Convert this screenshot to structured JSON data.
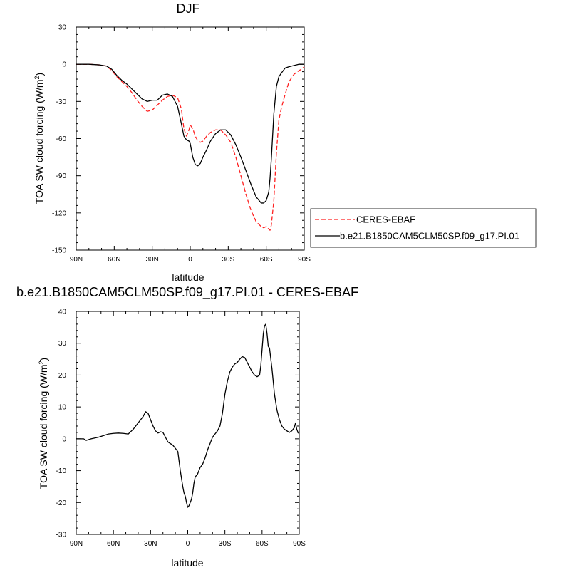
{
  "chart_data": [
    {
      "type": "line",
      "title": "DJF",
      "xlabel": "latitude",
      "ylabel": "TOA SW cloud forcing (W/m",
      "ylabel_sup": "2",
      "ylabel_end": ")",
      "xlim": [
        90,
        -90
      ],
      "ylim": [
        -150,
        30
      ],
      "x_ticks": [
        {
          "value": 90,
          "label": "90N"
        },
        {
          "value": 60,
          "label": "60N"
        },
        {
          "value": 30,
          "label": "30N"
        },
        {
          "value": 0,
          "label": "0"
        },
        {
          "value": -30,
          "label": "30S"
        },
        {
          "value": -60,
          "label": "60S"
        },
        {
          "value": -90,
          "label": "90S"
        }
      ],
      "y_ticks": [
        30,
        0,
        -30,
        -60,
        -90,
        -120,
        -150
      ],
      "grid": false,
      "legend_position": "right",
      "series": [
        {
          "name": "CERES-EBAF",
          "color": "#ff2020",
          "dash": "dashed",
          "x": [
            90,
            80,
            72,
            66,
            62,
            58,
            54,
            50,
            46,
            42,
            38,
            34,
            30,
            26,
            22,
            18,
            14,
            10,
            7,
            5,
            3,
            1,
            0,
            -2,
            -4,
            -6,
            -8,
            -10,
            -13,
            -16,
            -20,
            -24,
            -28,
            -32,
            -36,
            -40,
            -44,
            -48,
            -52,
            -56,
            -58,
            -60,
            -62,
            -63,
            -64,
            -66,
            -68,
            -70,
            -72,
            -75,
            -78,
            -82,
            -86,
            -88,
            -90
          ],
          "y": [
            0,
            0,
            -0.5,
            -1.5,
            -5,
            -10,
            -14,
            -18,
            -23,
            -29,
            -34,
            -38,
            -37,
            -33,
            -29,
            -26,
            -25,
            -27,
            -36,
            -52,
            -58,
            -53,
            -49,
            -52,
            -58,
            -62,
            -63,
            -62,
            -58,
            -55,
            -53,
            -53,
            -57,
            -63,
            -75,
            -90,
            -105,
            -118,
            -127,
            -131,
            -132,
            -131,
            -133,
            -134,
            -130,
            -110,
            -72,
            -45,
            -35,
            -24,
            -14,
            -8,
            -5,
            -4,
            -2
          ]
        },
        {
          "name": "b.e21.B1850CAM5CLM50SP.f09_g17.PI.01",
          "color": "#000000",
          "dash": "solid",
          "x": [
            90,
            80,
            72,
            66,
            62,
            58,
            54,
            50,
            46,
            42,
            38,
            34,
            30,
            26,
            22,
            18,
            14,
            10,
            7,
            5,
            3,
            1,
            0,
            -2,
            -4,
            -6,
            -8,
            -10,
            -13,
            -16,
            -20,
            -24,
            -28,
            -32,
            -36,
            -40,
            -44,
            -48,
            -52,
            -56,
            -58,
            -60,
            -62,
            -63,
            -64,
            -66,
            -68,
            -70,
            -72,
            -75,
            -78,
            -82,
            -86,
            -88,
            -90
          ],
          "y": [
            0,
            0,
            -0.5,
            -1.5,
            -4,
            -9,
            -13,
            -16,
            -20,
            -24,
            -28,
            -30,
            -29,
            -29,
            -25,
            -24,
            -26,
            -34,
            -48,
            -58,
            -61,
            -62,
            -64,
            -75,
            -81,
            -82,
            -80,
            -75,
            -69,
            -62,
            -56,
            -53,
            -53,
            -57,
            -65,
            -75,
            -86,
            -97,
            -107,
            -112,
            -112,
            -110,
            -103,
            -92,
            -77,
            -40,
            -18,
            -10,
            -7,
            -3,
            -2,
            -1,
            0,
            0,
            0
          ]
        }
      ]
    },
    {
      "type": "line",
      "title": "b.e21.B1850CAM5CLM50SP.f09_g17.PI.01 - CERES-EBAF",
      "xlabel": "latitude",
      "ylabel": "TOA SW cloud forcing (W/m",
      "ylabel_sup": "2",
      "ylabel_end": ")",
      "xlim": [
        90,
        -90
      ],
      "ylim": [
        -30,
        40
      ],
      "x_ticks": [
        {
          "value": 90,
          "label": "90N"
        },
        {
          "value": 60,
          "label": "60N"
        },
        {
          "value": 30,
          "label": "30N"
        },
        {
          "value": 0,
          "label": "0"
        },
        {
          "value": -30,
          "label": "30S"
        },
        {
          "value": -60,
          "label": "60S"
        },
        {
          "value": -90,
          "label": "90S"
        }
      ],
      "y_ticks": [
        40,
        30,
        20,
        10,
        0,
        -10,
        -20,
        -30
      ],
      "grid": false,
      "series": [
        {
          "name": "",
          "color": "#000000",
          "dash": "solid",
          "x": [
            90,
            84,
            82,
            78,
            72,
            68,
            64,
            60,
            56,
            52,
            48,
            44,
            40,
            38,
            36,
            34,
            32,
            30,
            28,
            26,
            24,
            22,
            20,
            18,
            16,
            14,
            12,
            10,
            8,
            6,
            4,
            3,
            2,
            1,
            0,
            -1,
            -2,
            -3,
            -4,
            -5,
            -6,
            -8,
            -10,
            -12,
            -14,
            -16,
            -18,
            -20,
            -22,
            -24,
            -26,
            -28,
            -30,
            -32,
            -34,
            -36,
            -38,
            -40,
            -42,
            -44,
            -46,
            -48,
            -50,
            -52,
            -54,
            -56,
            -58,
            -59,
            -60,
            -61,
            -62,
            -63,
            -64,
            -65,
            -66,
            -68,
            -70,
            -72,
            -74,
            -76,
            -78,
            -80,
            -82,
            -84,
            -86,
            -87,
            -88,
            -89,
            -90
          ],
          "y": [
            0,
            0,
            -0.5,
            0,
            0.5,
            1,
            1.5,
            1.7,
            1.8,
            1.7,
            1.5,
            3,
            5,
            6,
            7,
            8.5,
            8,
            6,
            4,
            2.5,
            1.8,
            2.2,
            2,
            0.5,
            -1,
            -1.5,
            -2,
            -3,
            -4,
            -10,
            -15,
            -17,
            -18,
            -20,
            -21.5,
            -21,
            -20,
            -19,
            -17,
            -14,
            -12,
            -11,
            -9,
            -8,
            -6,
            -3.5,
            -1.5,
            0.5,
            1.5,
            2.5,
            4,
            8,
            14,
            18,
            21,
            22.5,
            23.5,
            24,
            25,
            25.8,
            25.5,
            24,
            22.5,
            21,
            20,
            19.5,
            20,
            23,
            28,
            33,
            35.5,
            36,
            33,
            29,
            28.5,
            22,
            14,
            9,
            6,
            4,
            3,
            2.5,
            2,
            2.5,
            3.5,
            5,
            3,
            2,
            1.5
          ]
        }
      ]
    }
  ]
}
